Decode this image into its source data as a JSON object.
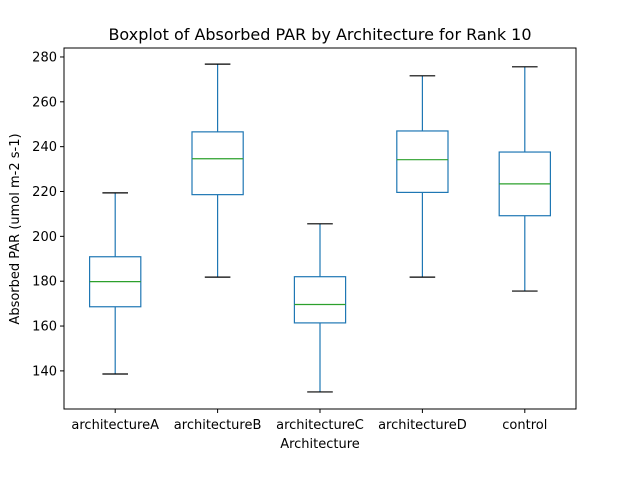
{
  "chart_data": {
    "type": "box",
    "title": "Boxplot of Absorbed PAR by Architecture for Rank 10",
    "xlabel": "Architecture",
    "ylabel": "Absorbed PAR (umol m-2 s-1)",
    "ylim": [
      123,
      284
    ],
    "yticks": [
      140,
      160,
      180,
      200,
      220,
      240,
      260,
      280
    ],
    "grid": false,
    "colors": {
      "box": "#1f77b4",
      "median": "#2ca02c",
      "cap": "#000000"
    },
    "categories": [
      "architectureA",
      "architectureB",
      "architectureC",
      "architectureD",
      "control"
    ],
    "boxes": [
      {
        "name": "architectureA",
        "whisker_low": 138.6,
        "q1": 168.6,
        "median": 179.8,
        "q3": 190.9,
        "whisker_high": 219.4
      },
      {
        "name": "architectureB",
        "whisker_low": 181.8,
        "q1": 218.6,
        "median": 234.6,
        "q3": 246.6,
        "whisker_high": 276.8
      },
      {
        "name": "architectureC",
        "whisker_low": 130.6,
        "q1": 161.4,
        "median": 169.6,
        "q3": 182.0,
        "whisker_high": 205.6
      },
      {
        "name": "architectureD",
        "whisker_low": 181.8,
        "q1": 219.6,
        "median": 234.2,
        "q3": 247.0,
        "whisker_high": 271.6
      },
      {
        "name": "control",
        "whisker_low": 175.6,
        "q1": 209.2,
        "median": 223.4,
        "q3": 237.6,
        "whisker_high": 275.6
      }
    ]
  }
}
